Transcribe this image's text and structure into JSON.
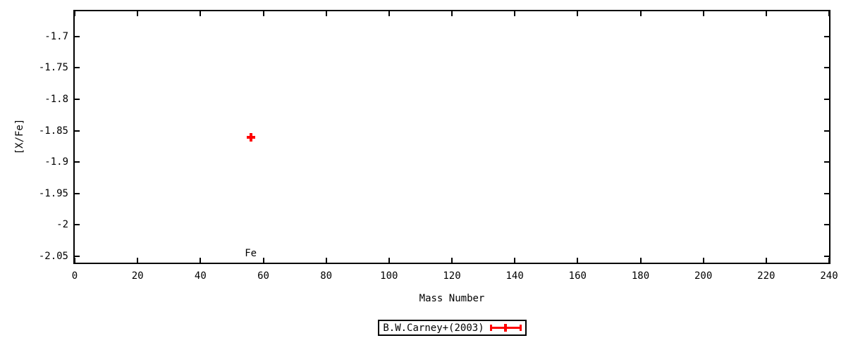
{
  "colors": {
    "series_red": "#ff0000",
    "axis_black": "#000000",
    "background": "#ffffff"
  },
  "chart_data": {
    "type": "scatter",
    "title": "",
    "xlabel": "Mass Number",
    "ylabel": "[X/Fe]",
    "xlim": [
      0,
      240
    ],
    "ylim": [
      -2.06,
      -1.66
    ],
    "grid": false,
    "legend_position": "below-plot-centered",
    "xticks": [
      0,
      20,
      40,
      60,
      80,
      100,
      120,
      140,
      160,
      180,
      200,
      220,
      240
    ],
    "xtick_labels": [
      "0",
      "20",
      "40",
      "60",
      "80",
      "100",
      "120",
      "140",
      "160",
      "180",
      "200",
      "220",
      "240"
    ],
    "yticks": [
      -1.7,
      -1.75,
      -1.8,
      -1.85,
      -1.9,
      -1.95,
      -2,
      -2.05
    ],
    "ytick_labels": [
      "-1.7",
      "-1.75",
      "-1.8",
      "-1.85",
      "-1.9",
      "-1.95",
      "-2",
      "-2.05"
    ],
    "ticks_mirrored": true,
    "series": [
      {
        "name": "B.W.Carney+(2003)",
        "color": "#ff0000",
        "marker": "plus",
        "style": "xerrorbars",
        "points": [
          {
            "x": 56,
            "y": -1.86,
            "xerr": 1,
            "element": "Fe"
          }
        ]
      }
    ],
    "annotations": [
      {
        "text": "Fe",
        "x": 56,
        "position": "just-above-x-axis"
      }
    ]
  },
  "legend": {
    "label": "B.W.Carney+(2003)",
    "symbol": "red-xerrorbar-sample",
    "symbol_color": "#ff0000"
  }
}
